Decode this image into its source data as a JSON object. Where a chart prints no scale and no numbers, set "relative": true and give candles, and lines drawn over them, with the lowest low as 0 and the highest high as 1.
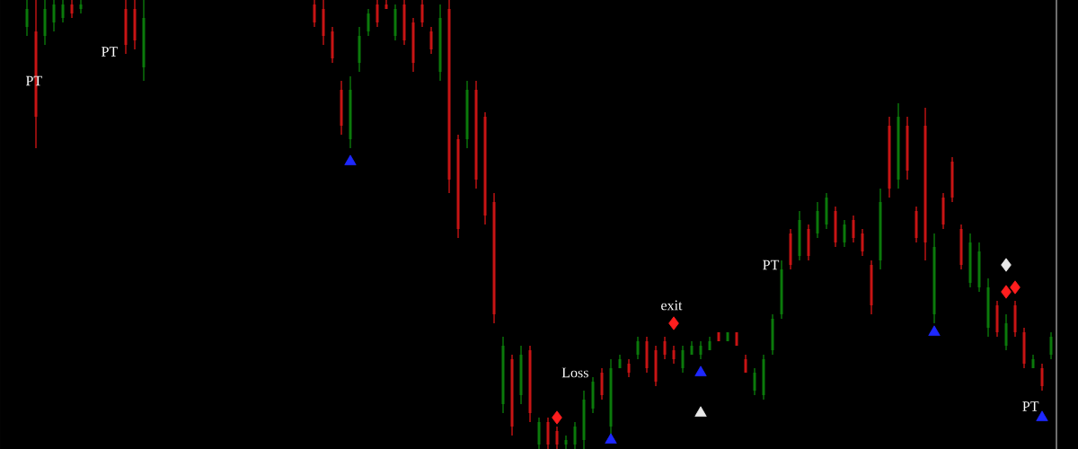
{
  "chart_data": {
    "type": "candlestick",
    "relative": true,
    "categories": [
      null,
      null,
      null,
      null,
      null,
      null,
      null,
      null,
      null,
      null,
      null,
      null,
      null,
      null,
      null,
      null,
      null,
      null,
      null,
      null,
      null,
      null,
      null,
      null,
      null,
      null,
      null,
      null,
      null,
      null,
      null,
      null,
      null,
      null,
      null,
      null,
      null,
      null,
      null,
      null,
      null,
      null,
      null,
      null,
      null,
      null,
      null,
      null,
      null,
      null,
      null,
      null,
      null,
      null,
      null,
      null,
      null,
      null,
      null,
      null,
      null,
      null,
      null,
      null,
      null,
      null,
      null,
      null,
      null,
      null,
      null,
      null,
      null,
      null,
      null,
      null,
      null,
      null,
      null,
      null,
      null,
      null,
      null,
      null,
      null,
      null,
      null,
      null,
      null,
      null,
      null,
      null,
      null,
      null,
      null,
      null,
      null,
      null,
      null,
      null,
      null,
      null,
      null,
      null,
      null,
      null,
      null,
      null,
      null,
      null,
      null,
      null,
      null,
      null,
      null
    ],
    "ohlc": [
      [
        0.94,
        1,
        0.92,
        0.98
      ],
      [
        0.93,
        1,
        0.67,
        0.74
      ],
      [
        0.92,
        1,
        0.9,
        0.98
      ],
      [
        0.95,
        1,
        0.93,
        0.99
      ],
      [
        0.96,
        1,
        0.95,
        0.99
      ],
      [
        0.99,
        1,
        0.96,
        0.97
      ],
      [
        0.98,
        1,
        0.97,
        0.99
      ],
      null,
      null,
      null,
      null,
      [
        0.98,
        1,
        0.88,
        0.9
      ],
      [
        0.98,
        1,
        0.89,
        0.91
      ],
      [
        0.85,
        1,
        0.82,
        0.96
      ],
      null,
      null,
      null,
      null,
      null,
      null,
      null,
      null,
      null,
      null,
      null,
      null,
      null,
      null,
      null,
      null,
      null,
      null,
      [
        0.99,
        1,
        0.94,
        0.95
      ],
      [
        0.98,
        1,
        0.9,
        0.92
      ],
      [
        0.93,
        0.94,
        0.86,
        0.87
      ],
      [
        0.8,
        0.82,
        0.7,
        0.72
      ],
      [
        0.69,
        0.83,
        0.67,
        0.8
      ],
      [
        0.86,
        0.94,
        0.84,
        0.92
      ],
      [
        0.93,
        0.98,
        0.92,
        0.97
      ],
      [
        0.99,
        1,
        0.94,
        0.95
      ],
      [
        0.99,
        1,
        0.98,
        0.98
      ],
      [
        0.92,
        0.99,
        0.91,
        0.98
      ],
      [
        0.99,
        1,
        0.9,
        0.91
      ],
      [
        0.95,
        0.96,
        0.84,
        0.86
      ],
      [
        0.99,
        1,
        0.94,
        0.95
      ],
      [
        0.93,
        0.94,
        0.88,
        0.89
      ],
      [
        0.84,
        0.99,
        0.82,
        0.96
      ],
      [
        0.98,
        1,
        0.57,
        0.6
      ],
      [
        0.69,
        0.7,
        0.47,
        0.49
      ],
      [
        0.69,
        0.82,
        0.67,
        0.8
      ],
      [
        0.8,
        0.82,
        0.58,
        0.6
      ],
      [
        0.74,
        0.75,
        0.5,
        0.52
      ],
      [
        0.55,
        0.57,
        0.28,
        0.3
      ],
      [
        0.1,
        0.25,
        0.08,
        0.23
      ],
      [
        0.2,
        0.21,
        0.03,
        0.05
      ],
      [
        0.12,
        0.23,
        0.1,
        0.21
      ],
      [
        0.22,
        0.23,
        0.06,
        0.08
      ],
      [
        0.01,
        0.07,
        0,
        0.06
      ],
      [
        0.06,
        0.07,
        0,
        0.01
      ],
      [
        0.04,
        0.05,
        0,
        0.01
      ],
      [
        0.01,
        0.03,
        0,
        0.02
      ],
      [
        0.01,
        0.06,
        0,
        0.05
      ],
      [
        0.02,
        0.13,
        0,
        0.11
      ],
      [
        0.09,
        0.16,
        0.08,
        0.15
      ],
      [
        0.17,
        0.18,
        0.11,
        0.12
      ],
      [
        0.05,
        0.2,
        0.03,
        0.18
      ],
      [
        0.18,
        0.21,
        0.18,
        0.2
      ],
      [
        0.19,
        0.2,
        0.16,
        0.17
      ],
      [
        0.21,
        0.25,
        0.2,
        0.24
      ],
      [
        0.24,
        0.25,
        0.17,
        0.18
      ],
      [
        0.22,
        0.23,
        0.14,
        0.15
      ],
      [
        0.24,
        0.25,
        0.2,
        0.21
      ],
      [
        0.22,
        0.23,
        0.19,
        0.2
      ],
      [
        0.18,
        0.23,
        0.17,
        0.22
      ],
      [
        0.21,
        0.24,
        0.21,
        0.23
      ],
      [
        0.21,
        0.24,
        0.2,
        0.23
      ],
      [
        0.22,
        0.25,
        0.22,
        0.24
      ],
      [
        0.26,
        0.26,
        0.24,
        0.24
      ],
      [
        0.24,
        0.26,
        0.24,
        0.26
      ],
      [
        0.26,
        0.26,
        0.23,
        0.23
      ],
      [
        0.2,
        0.21,
        0.17,
        0.17
      ],
      [
        0.13,
        0.18,
        0.12,
        0.17
      ],
      [
        0.12,
        0.21,
        0.11,
        0.2
      ],
      [
        0.22,
        0.3,
        0.21,
        0.29
      ],
      [
        0.3,
        0.42,
        0.29,
        0.4
      ],
      [
        0.48,
        0.49,
        0.4,
        0.41
      ],
      [
        0.43,
        0.53,
        0.42,
        0.51
      ],
      [
        0.49,
        0.5,
        0.42,
        0.43
      ],
      [
        0.48,
        0.55,
        0.47,
        0.53
      ],
      [
        0.5,
        0.57,
        0.49,
        0.56
      ],
      [
        0.53,
        0.54,
        0.45,
        0.46
      ],
      [
        0.46,
        0.51,
        0.45,
        0.5
      ],
      [
        0.51,
        0.52,
        0.46,
        0.47
      ],
      [
        0.48,
        0.49,
        0.43,
        0.44
      ],
      [
        0.41,
        0.42,
        0.3,
        0.32
      ],
      [
        0.42,
        0.58,
        0.4,
        0.55
      ],
      [
        0.72,
        0.74,
        0.56,
        0.58
      ],
      [
        0.6,
        0.77,
        0.58,
        0.74
      ],
      [
        0.72,
        0.74,
        0.6,
        0.62
      ],
      [
        0.53,
        0.54,
        0.46,
        0.47
      ],
      [
        0.72,
        0.76,
        0.42,
        0.46
      ],
      [
        0.3,
        0.48,
        0.28,
        0.45
      ],
      [
        0.56,
        0.57,
        0.49,
        0.5
      ],
      [
        0.64,
        0.65,
        0.55,
        0.56
      ],
      [
        0.49,
        0.5,
        0.4,
        0.41
      ],
      [
        0.37,
        0.48,
        0.36,
        0.46
      ],
      [
        0.36,
        0.46,
        0.35,
        0.44
      ],
      [
        0.27,
        0.38,
        0.25,
        0.36
      ],
      [
        0.32,
        0.33,
        0.25,
        0.26
      ],
      [
        0.23,
        0.3,
        0.22,
        0.28
      ],
      [
        0.32,
        0.33,
        0.25,
        0.26
      ],
      [
        0.26,
        0.27,
        0.18,
        0.19
      ],
      [
        0.18,
        0.21,
        0.18,
        0.2
      ],
      [
        0.18,
        0.19,
        0.13,
        0.14
      ],
      [
        0.21,
        0.26,
        0.2,
        0.25
      ]
    ],
    "colors": [
      "#0b7a0b",
      "#c81414",
      "#0b7a0b",
      "#0b7a0b",
      "#0b7a0b",
      "#c81414",
      "#0b7a0b",
      null,
      null,
      null,
      null,
      "#c81414",
      "#c81414",
      "#0b7a0b",
      null,
      null,
      null,
      null,
      null,
      null,
      null,
      null,
      null,
      null,
      null,
      null,
      null,
      null,
      null,
      null,
      null,
      null,
      "#c81414",
      "#c81414",
      "#c81414",
      "#c81414",
      "#0b7a0b",
      "#0b7a0b",
      "#0b7a0b",
      "#c81414",
      "#c81414",
      "#0b7a0b",
      "#c81414",
      "#c81414",
      "#c81414",
      "#c81414",
      "#0b7a0b",
      "#c81414",
      "#c81414",
      "#0b7a0b",
      "#c81414",
      "#c81414",
      "#c81414",
      "#0b7a0b",
      "#c81414",
      "#0b7a0b",
      "#c81414",
      "#0b7a0b",
      "#c81414",
      "#c81414",
      "#0b7a0b",
      "#0b7a0b",
      "#0b7a0b",
      "#0b7a0b",
      "#c81414",
      "#0b7a0b",
      "#0b7a0b",
      "#c81414",
      "#0b7a0b",
      "#c81414",
      "#c81414",
      "#c81414",
      "#c81414",
      "#0b7a0b",
      "#0b7a0b",
      "#0b7a0b",
      "#0b7a0b",
      "#c81414",
      "#0b7a0b",
      "#c81414",
      "#c81414",
      "#0b7a0b",
      "#0b7a0b",
      "#0b7a0b",
      "#0b7a0b",
      "#c81414",
      "#0b7a0b",
      "#c81414",
      "#0b7a0b",
      "#0b7a0b",
      "#c81414",
      "#0b7a0b",
      "#c81414",
      "#c81414",
      "#c81414",
      "#0b7a0b",
      "#c81414",
      "#0b7a0b",
      "#c81414",
      "#c81414",
      "#c81414",
      "#0b7a0b",
      "#c81414",
      "#c81414",
      "#c81414",
      "#0b7a0b",
      "#0b7a0b",
      "#0b7a0b",
      "#c81414",
      "#0b7a0b",
      "#c81414",
      "#c81414",
      "#0b7a0b",
      "#c81414",
      "#0b7a0b"
    ],
    "series": [
      {
        "type": "scatter",
        "color": "#1e28ff",
        "marker": "triangle",
        "values": [
          null,
          null,
          null,
          null,
          null,
          null,
          null,
          null,
          null,
          null,
          null,
          null,
          null,
          null,
          null,
          null,
          null,
          null,
          null,
          null,
          null,
          null,
          null,
          null,
          null,
          null,
          null,
          null,
          null,
          null,
          null,
          null,
          null,
          null,
          null,
          null,
          0.64,
          null,
          null,
          null,
          null,
          null,
          null,
          null,
          null,
          null,
          null,
          null,
          null,
          null,
          null,
          null,
          null,
          null,
          null,
          null,
          null,
          null,
          null,
          null,
          null,
          null,
          null,
          null,
          null,
          0.02,
          null,
          null,
          null,
          null,
          null,
          null,
          null,
          null,
          null,
          0.17,
          null,
          null,
          null,
          null,
          null,
          null,
          null,
          null,
          null,
          null,
          null,
          null,
          null,
          null,
          null,
          null,
          null,
          null,
          null,
          null,
          null,
          null,
          null,
          null,
          null,
          0.26,
          null,
          null,
          null,
          null,
          null,
          null,
          null,
          null,
          null,
          null,
          null,
          0.07,
          null
        ]
      },
      {
        "type": "scatter",
        "color": "#e8e8e8",
        "marker": "triangle",
        "values": [
          null,
          null,
          null,
          null,
          null,
          null,
          null,
          null,
          null,
          null,
          null,
          null,
          null,
          null,
          null,
          null,
          null,
          null,
          null,
          null,
          null,
          null,
          null,
          null,
          null,
          null,
          null,
          null,
          null,
          null,
          null,
          null,
          null,
          null,
          null,
          null,
          null,
          null,
          null,
          null,
          null,
          null,
          null,
          null,
          null,
          null,
          null,
          null,
          null,
          null,
          null,
          null,
          null,
          null,
          null,
          null,
          null,
          null,
          null,
          null,
          null,
          null,
          null,
          null,
          null,
          null,
          null,
          null,
          null,
          null,
          null,
          null,
          null,
          null,
          null,
          0.08,
          null,
          null,
          null,
          null,
          null,
          null,
          null,
          null,
          null,
          null,
          null,
          null,
          null,
          null,
          null,
          null,
          null,
          null,
          null,
          null,
          null,
          null,
          null,
          null,
          null,
          null,
          null,
          null,
          null,
          null,
          null,
          null,
          null,
          null,
          null,
          null,
          null,
          null,
          null
        ]
      },
      {
        "type": "scatter",
        "color": "#ff1e1e",
        "marker": "diamond",
        "values": [
          null,
          null,
          null,
          null,
          null,
          null,
          null,
          null,
          null,
          null,
          null,
          null,
          null,
          null,
          null,
          null,
          null,
          null,
          null,
          null,
          null,
          null,
          null,
          null,
          null,
          null,
          null,
          null,
          null,
          null,
          null,
          null,
          null,
          null,
          null,
          null,
          null,
          null,
          null,
          null,
          null,
          null,
          null,
          null,
          null,
          null,
          null,
          null,
          null,
          null,
          null,
          null,
          null,
          null,
          null,
          null,
          null,
          null,
          null,
          0.07,
          null,
          null,
          null,
          null,
          null,
          null,
          null,
          null,
          null,
          null,
          null,
          null,
          0.28,
          null,
          null,
          null,
          null,
          null,
          null,
          null,
          null,
          null,
          null,
          null,
          null,
          null,
          null,
          null,
          null,
          null,
          null,
          null,
          null,
          null,
          null,
          null,
          null,
          null,
          null,
          null,
          null,
          null,
          null,
          null,
          null,
          null,
          null,
          null,
          null,
          0.35,
          0.36,
          null,
          null,
          null,
          null
        ]
      },
      {
        "type": "scatter",
        "color": "#e8e8e8",
        "marker": "diamond",
        "values": [
          null,
          null,
          null,
          null,
          null,
          null,
          null,
          null,
          null,
          null,
          null,
          null,
          null,
          null,
          null,
          null,
          null,
          null,
          null,
          null,
          null,
          null,
          null,
          null,
          null,
          null,
          null,
          null,
          null,
          null,
          null,
          null,
          null,
          null,
          null,
          null,
          null,
          null,
          null,
          null,
          null,
          null,
          null,
          null,
          null,
          null,
          null,
          null,
          null,
          null,
          null,
          null,
          null,
          null,
          null,
          null,
          null,
          null,
          null,
          null,
          null,
          null,
          null,
          null,
          null,
          null,
          null,
          null,
          null,
          null,
          null,
          null,
          null,
          null,
          null,
          null,
          null,
          null,
          null,
          null,
          null,
          null,
          null,
          null,
          null,
          null,
          null,
          null,
          null,
          null,
          null,
          null,
          null,
          null,
          null,
          null,
          null,
          null,
          null,
          null,
          null,
          null,
          null,
          null,
          null,
          null,
          null,
          null,
          null,
          0.41,
          null,
          null,
          null,
          null,
          null
        ]
      }
    ],
    "annotations": [
      "PT",
      "PT",
      "Loss",
      "exit",
      "PT",
      "PT"
    ]
  }
}
